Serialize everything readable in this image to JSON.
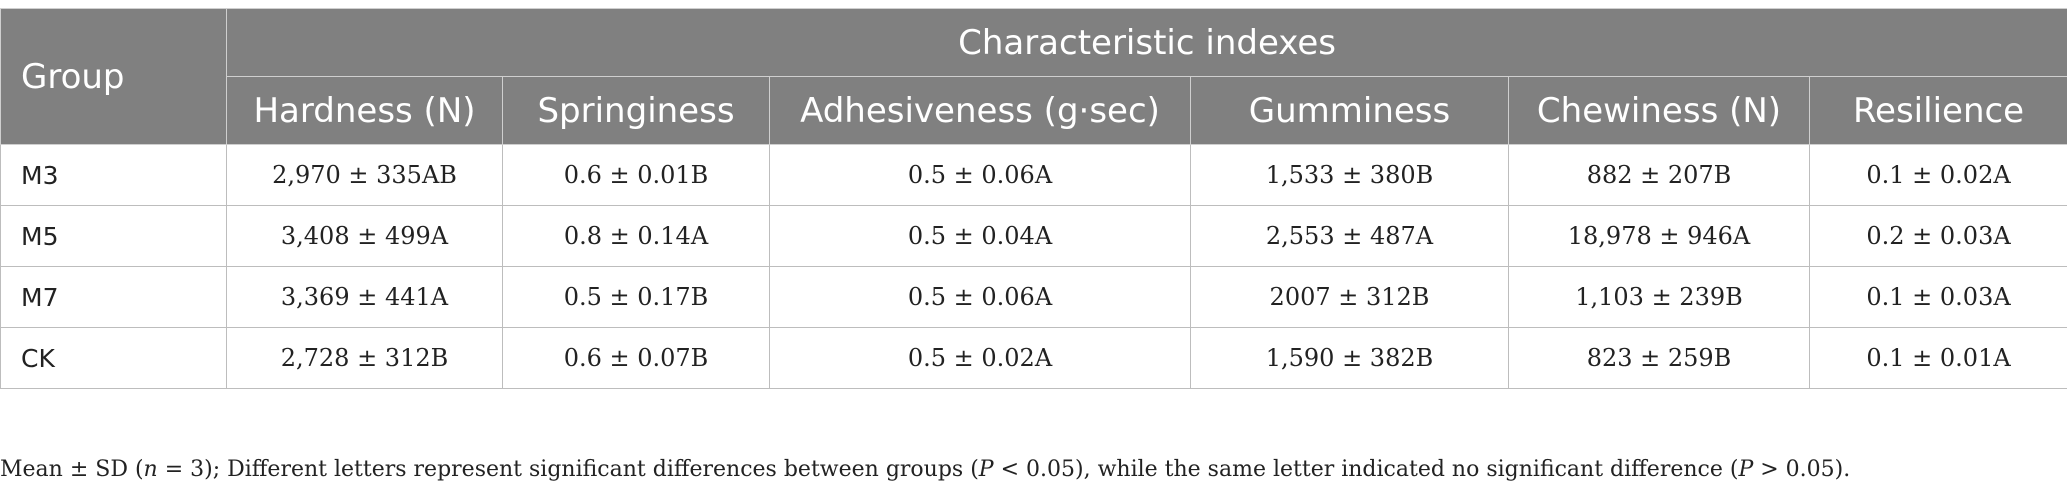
{
  "table": {
    "group_header": "Group",
    "indexes_header": "Characteristic indexes",
    "columns": [
      "Hardness (N)",
      "Springiness",
      "Adhesiveness (g·sec)",
      "Gumminess",
      "Chewiness (N)",
      "Resilience"
    ],
    "rows": [
      {
        "group": "M3",
        "values": [
          "2,970 ± 335AB",
          "0.6 ± 0.01B",
          "0.5 ± 0.06A",
          "1,533 ± 380B",
          "882 ± 207B",
          "0.1 ± 0.02A"
        ]
      },
      {
        "group": "M5",
        "values": [
          "3,408 ± 499A",
          "0.8 ± 0.14A",
          "0.5 ± 0.04A",
          "2,553 ± 487A",
          "18,978 ± 946A",
          "0.2 ± 0.03A"
        ]
      },
      {
        "group": "M7",
        "values": [
          "3,369 ± 441A",
          "0.5 ± 0.17B",
          "0.5 ± 0.06A",
          "2007 ± 312B",
          "1,103 ± 239B",
          "0.1 ± 0.03A"
        ]
      },
      {
        "group": "CK",
        "values": [
          "2,728 ± 312B",
          "0.6 ± 0.07B",
          "0.5 ± 0.02A",
          "1,590 ± 382B",
          "823 ± 259B",
          "0.1 ± 0.01A"
        ]
      }
    ]
  },
  "footnote": {
    "part1": "Mean ± SD (",
    "n": "n",
    "part2": " = 3); Different letters represent significant differences between groups (",
    "p1": "P",
    "part3": " < 0.05), while the same letter indicated no significant difference (",
    "p2": "P",
    "part4": " > 0.05)."
  }
}
